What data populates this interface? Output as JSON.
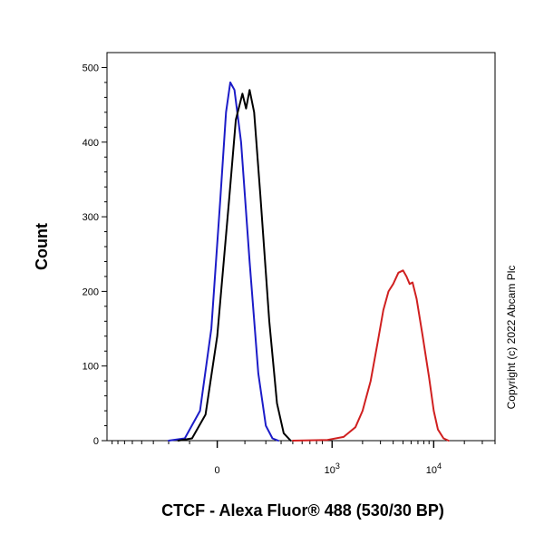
{
  "chart_data": {
    "type": "line",
    "title": "",
    "xlabel": "CTCF - Alexa Fluor® 488 (530/30 BP)",
    "ylabel": "Count",
    "xscale": "biexponential",
    "xlim": [
      -900,
      40000
    ],
    "ylim": [
      0,
      520
    ],
    "x_ticks": [
      {
        "value": 0,
        "label": "0"
      },
      {
        "value": 1000,
        "label": "10",
        "exp": "3"
      },
      {
        "value": 10000,
        "label": "10",
        "exp": "4"
      }
    ],
    "y_ticks": [
      {
        "value": 0,
        "label": "0"
      },
      {
        "value": 100,
        "label": "100"
      },
      {
        "value": 200,
        "label": "200"
      },
      {
        "value": 300,
        "label": "300"
      },
      {
        "value": 400,
        "label": "400"
      },
      {
        "value": 500,
        "label": "500"
      }
    ],
    "grid": false,
    "legend": "none",
    "series": [
      {
        "color": "#1c1cc8",
        "points": [
          [
            -200,
            0
          ],
          [
            -120,
            3
          ],
          [
            -60,
            40
          ],
          [
            -20,
            150
          ],
          [
            10,
            320
          ],
          [
            30,
            440
          ],
          [
            45,
            480
          ],
          [
            60,
            470
          ],
          [
            85,
            400
          ],
          [
            120,
            240
          ],
          [
            160,
            90
          ],
          [
            200,
            20
          ],
          [
            240,
            3
          ],
          [
            280,
            0
          ]
        ]
      },
      {
        "color": "#000000",
        "points": [
          [
            -150,
            0
          ],
          [
            -90,
            3
          ],
          [
            -40,
            35
          ],
          [
            0,
            140
          ],
          [
            40,
            320
          ],
          [
            65,
            430
          ],
          [
            90,
            465
          ],
          [
            105,
            445
          ],
          [
            120,
            470
          ],
          [
            140,
            440
          ],
          [
            170,
            330
          ],
          [
            220,
            160
          ],
          [
            270,
            50
          ],
          [
            320,
            10
          ],
          [
            380,
            0
          ]
        ]
      },
      {
        "color": "#d02020",
        "points": [
          [
            400,
            0
          ],
          [
            900,
            1
          ],
          [
            1300,
            5
          ],
          [
            1700,
            18
          ],
          [
            2000,
            40
          ],
          [
            2400,
            80
          ],
          [
            2800,
            130
          ],
          [
            3200,
            175
          ],
          [
            3600,
            200
          ],
          [
            4000,
            210
          ],
          [
            4500,
            225
          ],
          [
            5000,
            228
          ],
          [
            5400,
            220
          ],
          [
            5800,
            210
          ],
          [
            6200,
            212
          ],
          [
            6800,
            190
          ],
          [
            7800,
            140
          ],
          [
            9000,
            85
          ],
          [
            10000,
            40
          ],
          [
            11000,
            15
          ],
          [
            12500,
            3
          ],
          [
            14000,
            0
          ]
        ]
      }
    ],
    "annotations": [
      "Copyright (c) 2022 Abcam Plc"
    ]
  }
}
